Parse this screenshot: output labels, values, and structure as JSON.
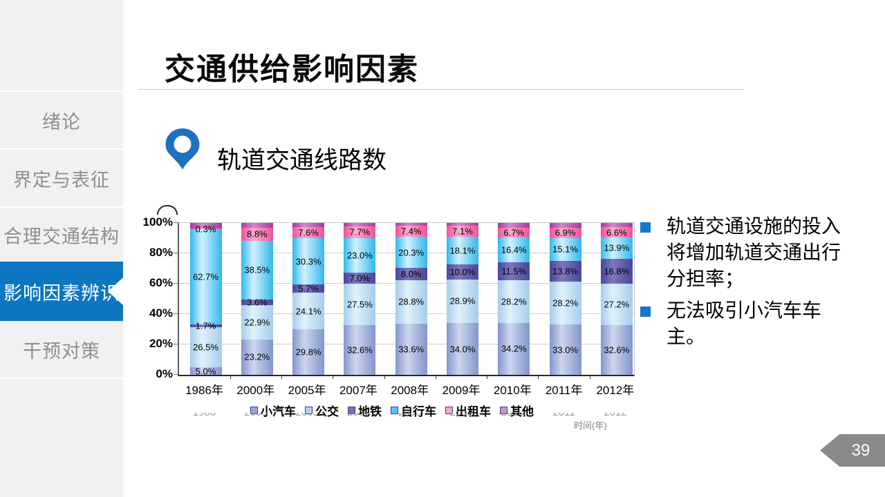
{
  "slide": {
    "title": "交通供给影响因素",
    "section_heading": "轨道交通线路数",
    "page_number": "39"
  },
  "sidebar": {
    "items": [
      {
        "label": "绪论",
        "active": false
      },
      {
        "label": "界定与表征",
        "active": false
      },
      {
        "label": "合理交通结构",
        "active": false
      },
      {
        "label": "影响因素辨识",
        "active": true
      },
      {
        "label": "干预对策",
        "active": false
      }
    ]
  },
  "bullets": {
    "items": [
      "轨道交通设施的投入将增加轨道交通出行分担率；",
      "无法吸引小汽车车主。"
    ]
  },
  "colors": {
    "sidebar_bg": "#f1f1f1",
    "sidebar_text": "#8f8f8f",
    "active_item_bg": "#0d76c0",
    "active_item_text": "#ffffff",
    "accent_blue": "#1c72bd",
    "bullet_square": "#1878c8",
    "badge_gray": "#8a8a8a",
    "grid_line": "#cccccc",
    "faded_axis_text": "#9a9a9a"
  },
  "chart_data": {
    "type": "bar",
    "subtype": "stacked-100-percent",
    "categories": [
      "1986年",
      "2000年",
      "2005年",
      "2007年",
      "2008年",
      "2009年",
      "2010年",
      "2011年",
      "2012年"
    ],
    "series": [
      {
        "name": "小汽车",
        "values": [
          5.0,
          23.2,
          29.8,
          32.6,
          33.6,
          34.0,
          34.2,
          33.0,
          32.6
        ],
        "labeled": true,
        "color": "#8295cc",
        "highlight": "#cdd6ee",
        "swatch": "#96a6d8"
      },
      {
        "name": "公交",
        "values": [
          26.5,
          22.9,
          24.1,
          27.5,
          28.8,
          28.9,
          28.2,
          28.2,
          27.2
        ],
        "labeled": true,
        "color": "#a4cdeb",
        "highlight": "#e2f1fb",
        "swatch": "#abd5f1"
      },
      {
        "name": "地铁",
        "values": [
          1.7,
          3.6,
          5.7,
          7.0,
          8.0,
          10.0,
          11.5,
          13.8,
          16.8
        ],
        "labeled": true,
        "color": "#49479c",
        "highlight": "#7d76bd",
        "swatch": "#7c6db2"
      },
      {
        "name": "自行车",
        "values": [
          62.7,
          38.5,
          30.3,
          23.0,
          20.3,
          18.1,
          16.4,
          15.1,
          13.9
        ],
        "labeled": true,
        "color": "#30b8ef",
        "highlight": "#d3f1fd",
        "swatch": "#5ac7f2"
      },
      {
        "name": "出租车",
        "values": [
          0.3,
          8.8,
          7.6,
          7.7,
          7.4,
          7.1,
          6.7,
          6.9,
          6.6
        ],
        "labeled": true,
        "color": "#f2519a",
        "highlight": "#fbadcd",
        "swatch": "#f5a3c6"
      },
      {
        "name": "其他",
        "values": [
          3.8,
          3.0,
          2.5,
          2.2,
          1.9,
          1.9,
          3.0,
          3.0,
          2.9
        ],
        "labeled": false,
        "color": "#a23d9e",
        "highlight": "#d287ca",
        "swatch": "#c994cf"
      }
    ],
    "value_suffix": "%",
    "y_ticks": [
      "0%",
      "20%",
      "40%",
      "60%",
      "80%",
      "100%"
    ],
    "ylim": [
      0,
      100
    ],
    "grid": true,
    "legend_position": "bottom",
    "underlying_axis": {
      "tick_labels": [
        "1986",
        "2000",
        "2005",
        "2007",
        "2008",
        "2009",
        "2010",
        "2011",
        "2012"
      ],
      "title": "时间(年)"
    }
  }
}
